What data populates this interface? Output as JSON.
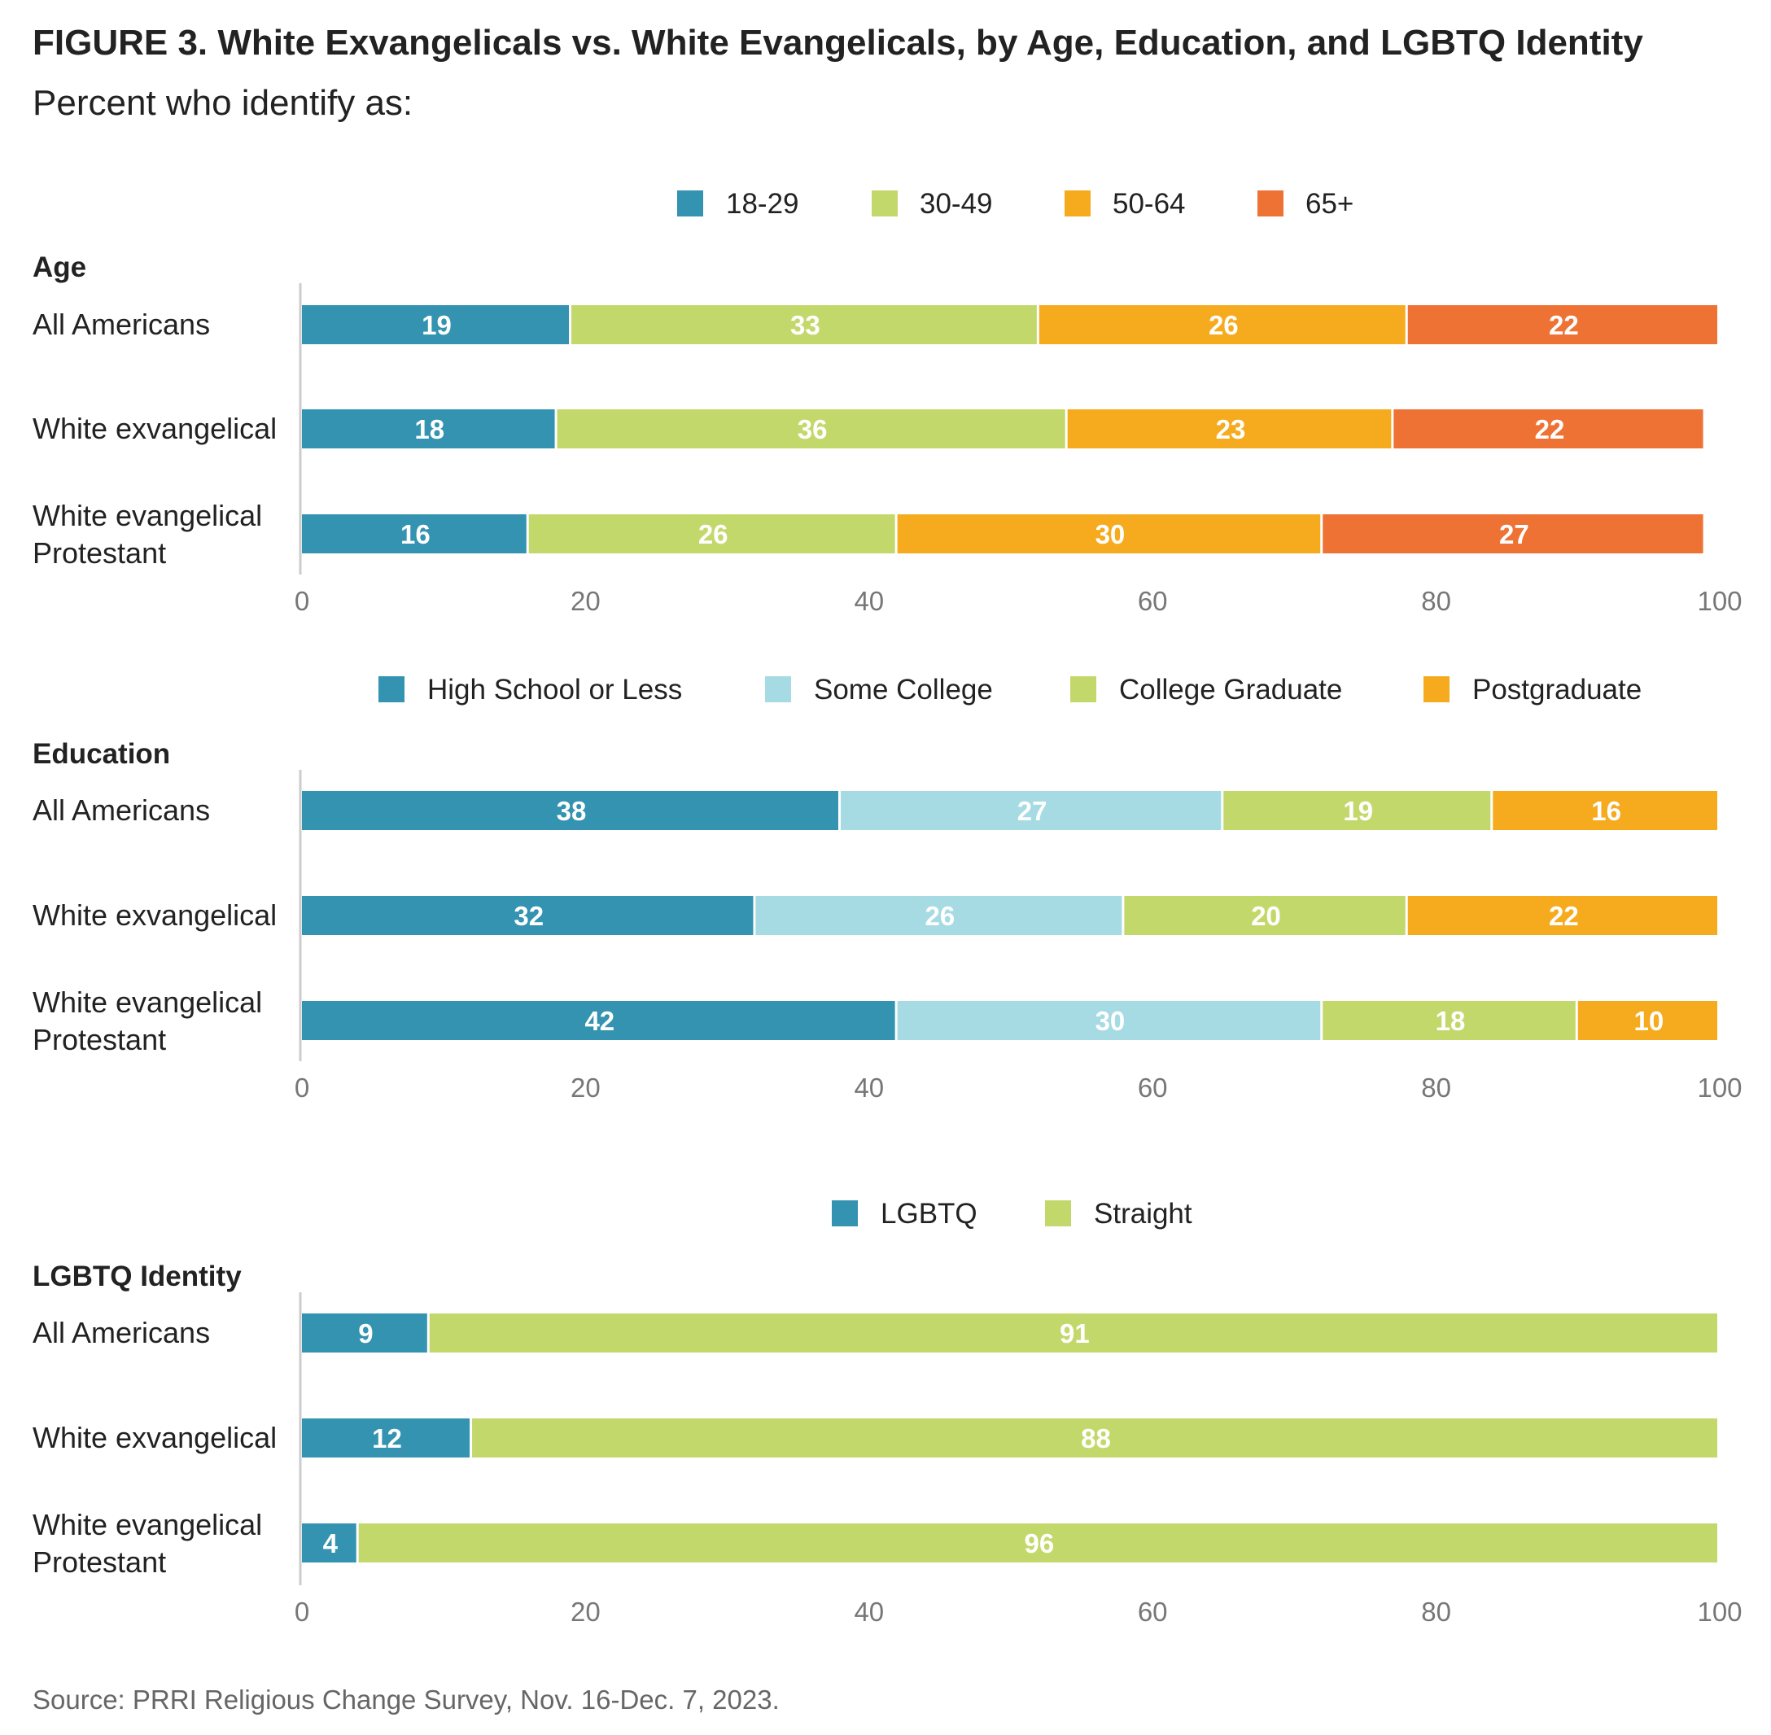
{
  "title": "FIGURE 3.  White Exvangelicals vs. White Evangelicals, by Age, Education, and LGBTQ Identity",
  "subtitle": "Percent who identify as:",
  "source": "Source: PRRI Religious Change Survey, Nov. 16-Dec. 7, 2023.",
  "colors": {
    "teal": "#3393b0",
    "light_blue": "#a6dbe4",
    "green": "#c3d86b",
    "yellow": "#f6ab1f",
    "orange": "#ef7235",
    "axis": "#cccccc",
    "tick_text": "#777777"
  },
  "chart_data": [
    {
      "type": "bar",
      "orientation": "horizontal",
      "stacked": true,
      "panel_title": "Age",
      "categories": [
        "All Americans",
        "White exvangelical",
        "White evangelical Protestant"
      ],
      "series": [
        {
          "name": "18-29",
          "color": "#3393b0",
          "values": [
            19,
            18,
            16
          ]
        },
        {
          "name": "30-49",
          "color": "#c3d86b",
          "values": [
            33,
            36,
            26
          ]
        },
        {
          "name": "50-64",
          "color": "#f6ab1f",
          "values": [
            26,
            23,
            30
          ]
        },
        {
          "name": "65+",
          "color": "#ef7235",
          "values": [
            22,
            22,
            27
          ]
        }
      ],
      "xlim": [
        0,
        100
      ],
      "xticks": [
        0,
        20,
        40,
        60,
        80,
        100
      ],
      "legend_position": "top",
      "grid": false
    },
    {
      "type": "bar",
      "orientation": "horizontal",
      "stacked": true,
      "panel_title": "Education",
      "categories": [
        "All Americans",
        "White exvangelical",
        "White evangelical Protestant"
      ],
      "series": [
        {
          "name": "High School or Less",
          "color": "#3393b0",
          "values": [
            38,
            32,
            42
          ]
        },
        {
          "name": "Some College",
          "color": "#a6dbe4",
          "values": [
            27,
            26,
            30
          ]
        },
        {
          "name": "College Graduate",
          "color": "#c3d86b",
          "values": [
            19,
            20,
            18
          ]
        },
        {
          "name": "Postgraduate",
          "color": "#f6ab1f",
          "values": [
            16,
            22,
            10
          ]
        }
      ],
      "xlim": [
        0,
        100
      ],
      "xticks": [
        0,
        20,
        40,
        60,
        80,
        100
      ],
      "legend_position": "top",
      "grid": false
    },
    {
      "type": "bar",
      "orientation": "horizontal",
      "stacked": true,
      "panel_title": "LGBTQ Identity",
      "categories": [
        "All Americans",
        "White exvangelical",
        "White evangelical Protestant"
      ],
      "series": [
        {
          "name": "LGBTQ",
          "color": "#3393b0",
          "values": [
            9,
            12,
            4
          ]
        },
        {
          "name": "Straight",
          "color": "#c3d86b",
          "values": [
            91,
            88,
            96
          ]
        }
      ],
      "xlim": [
        0,
        100
      ],
      "xticks": [
        0,
        20,
        40,
        60,
        80,
        100
      ],
      "legend_position": "top",
      "grid": false
    }
  ]
}
